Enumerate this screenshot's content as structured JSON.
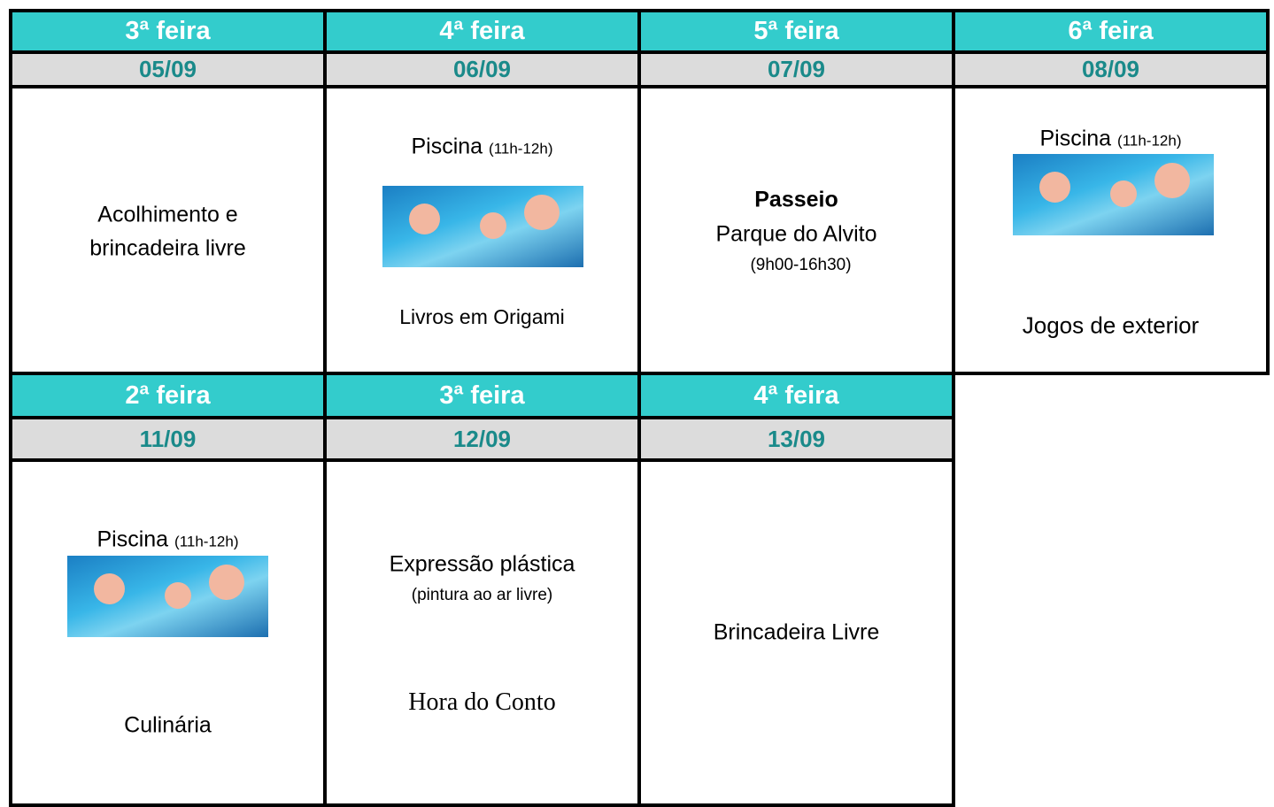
{
  "rows": [
    {
      "cells": [
        {
          "day": "3ª feira",
          "date": "05/09",
          "activity": "Acolhimento e brincadeira livre"
        },
        {
          "day": "4ª feira",
          "date": "06/09",
          "activity": "Piscina",
          "time": "(11h-12h)",
          "activity2": "Livros em Origami"
        },
        {
          "day": "5ª feira",
          "date": "07/09",
          "activity": "Passeio",
          "place": "Parque do Alvito",
          "time": "(9h00-16h30)"
        },
        {
          "day": "6ª feira",
          "date": "08/09",
          "activity": "Piscina",
          "time": "(11h-12h)",
          "activity2": "Jogos de exterior"
        }
      ]
    },
    {
      "cells": [
        {
          "day": "2ª feira",
          "date": "11/09",
          "activity": "Piscina",
          "time": "(11h-12h)",
          "activity2": "Culinária"
        },
        {
          "day": "3ª feira",
          "date": "12/09",
          "activity": "Expressão plástica",
          "time": "(pintura ao ar livre)",
          "activity2": "Hora do Conto"
        },
        {
          "day": "4ª feira",
          "date": "13/09",
          "activity": "Brincadeira Livre"
        }
      ]
    }
  ]
}
